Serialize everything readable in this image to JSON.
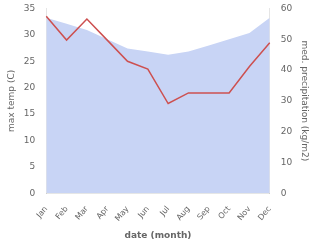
{
  "chart_data": {
    "type": "line",
    "xlabel": "date (month)",
    "ylabel": "max temp (C)",
    "y2label": "med. precipitation (kg/m2)",
    "categories": [
      "Jan",
      "Feb",
      "Mar",
      "Apr",
      "May",
      "Jun",
      "Jul",
      "Aug",
      "Sep",
      "Oct",
      "Nov",
      "Dec"
    ],
    "series": [
      {
        "type": "area",
        "color": "#c8d4f5",
        "axis": "y2",
        "values": [
          57,
          55,
          53,
          50,
          47,
          46,
          45,
          46,
          48,
          50,
          52,
          57
        ]
      },
      {
        "type": "line",
        "color": "#cd5050",
        "values": [
          33.5,
          29.0,
          33.0,
          29.0,
          25.0,
          23.5,
          17.0,
          19.0,
          19.0,
          19.0,
          24.0,
          28.5
        ]
      }
    ],
    "ylim": [
      0,
      35
    ],
    "yticks": [
      0,
      5,
      10,
      15,
      20,
      25,
      30,
      35
    ],
    "y2lim": [
      0,
      60
    ],
    "y2ticks": [
      0,
      10,
      20,
      30,
      40,
      50,
      60
    ],
    "grid": false
  }
}
